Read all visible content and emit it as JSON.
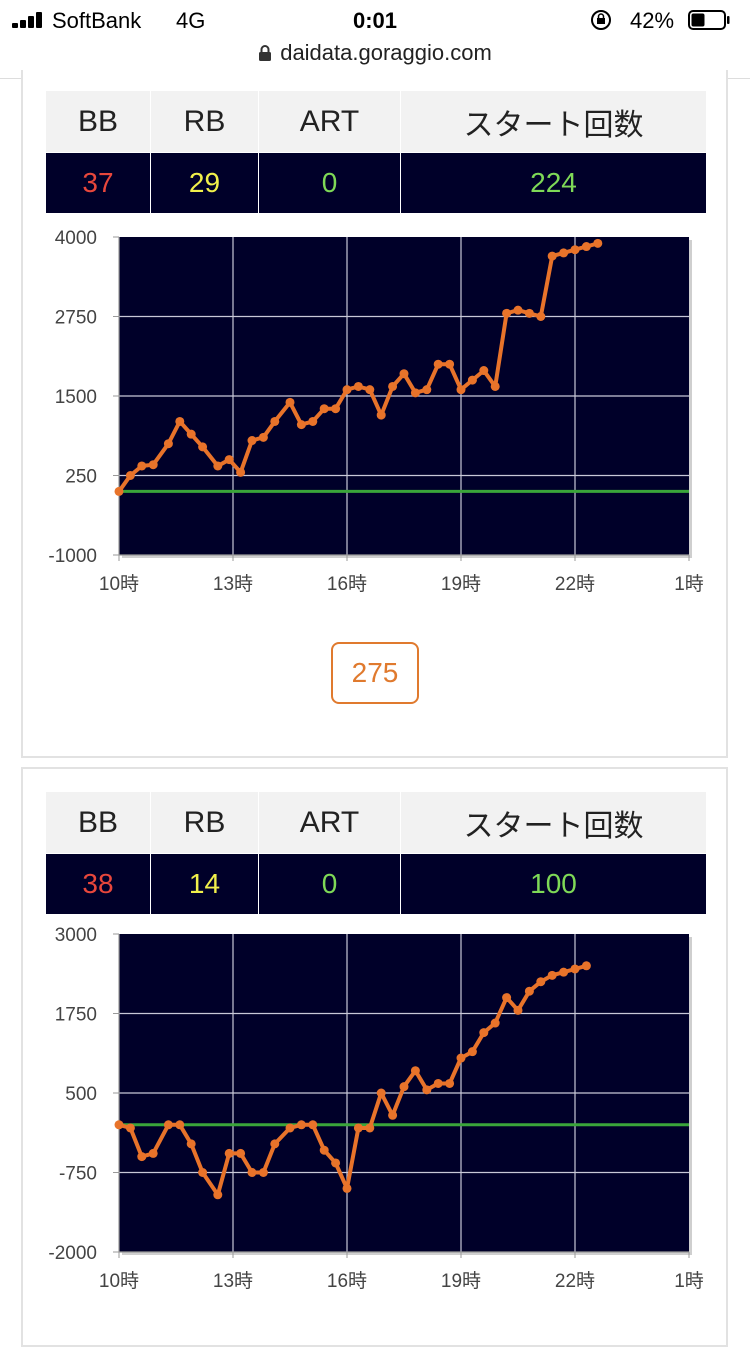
{
  "status": {
    "carrier": "SoftBank",
    "network": "4G",
    "time": "0:01",
    "battery_pct": "42%",
    "battery_level": 0.42
  },
  "browser": {
    "url": "daidata.goraggio.com"
  },
  "machines": [
    {
      "stats": {
        "headers": [
          "BB",
          "RB",
          "ART",
          "スタート回数"
        ],
        "values": [
          "37",
          "29",
          "0",
          "224"
        ]
      },
      "counter_label": "275",
      "chart_data": {
        "type": "line",
        "y_ticks": [
          "4000",
          "2750",
          "1500",
          "250",
          "-1000"
        ],
        "x_ticks": [
          "10時",
          "13時",
          "16時",
          "19時",
          "22時",
          "1時"
        ],
        "ylim": [
          -1000,
          4000
        ],
        "xlim": [
          10,
          25
        ],
        "baseline": 0,
        "grid": true,
        "colors": {
          "line": "#e8732a",
          "baseline": "#3aa53a",
          "background": "#000029"
        },
        "x": [
          10,
          10.3,
          10.6,
          10.9,
          11.3,
          11.6,
          11.9,
          12.2,
          12.6,
          12.9,
          13.2,
          13.5,
          13.8,
          14.1,
          14.5,
          14.8,
          15.1,
          15.4,
          15.7,
          16.0,
          16.3,
          16.6,
          16.9,
          17.2,
          17.5,
          17.8,
          18.1,
          18.4,
          18.7,
          19.0,
          19.3,
          19.6,
          19.9,
          20.2,
          20.5,
          20.8,
          21.1,
          21.4,
          21.7,
          22.0,
          22.3,
          22.6
        ],
        "y": [
          0,
          250,
          400,
          420,
          750,
          1100,
          900,
          700,
          400,
          500,
          300,
          800,
          850,
          1100,
          1400,
          1050,
          1100,
          1300,
          1300,
          1600,
          1650,
          1600,
          1200,
          1650,
          1850,
          1550,
          1600,
          2000,
          2000,
          1600,
          1750,
          1900,
          1650,
          2800,
          2850,
          2800,
          2750,
          3700,
          3750,
          3800,
          3850,
          3900
        ]
      }
    },
    {
      "stats": {
        "headers": [
          "BB",
          "RB",
          "ART",
          "スタート回数"
        ],
        "values": [
          "38",
          "14",
          "0",
          "100"
        ]
      },
      "chart_data": {
        "type": "line",
        "y_ticks": [
          "3000",
          "1750",
          "500",
          "-750",
          "-2000"
        ],
        "x_ticks": [
          "10時",
          "13時",
          "16時",
          "19時",
          "22時",
          "1時"
        ],
        "ylim": [
          -2000,
          3000
        ],
        "xlim": [
          10,
          25
        ],
        "baseline": 0,
        "grid": true,
        "colors": {
          "line": "#e8732a",
          "baseline": "#3aa53a",
          "background": "#000029"
        },
        "x": [
          10,
          10.3,
          10.6,
          10.9,
          11.3,
          11.6,
          11.9,
          12.2,
          12.6,
          12.9,
          13.2,
          13.5,
          13.8,
          14.1,
          14.5,
          14.8,
          15.1,
          15.4,
          15.7,
          16.0,
          16.3,
          16.6,
          16.9,
          17.2,
          17.5,
          17.8,
          18.1,
          18.4,
          18.7,
          19.0,
          19.3,
          19.6,
          19.9,
          20.2,
          20.5,
          20.8,
          21.1,
          21.4,
          21.7,
          22.0,
          22.3
        ],
        "y": [
          0,
          -50,
          -500,
          -450,
          0,
          0,
          -300,
          -750,
          -1100,
          -450,
          -450,
          -750,
          -750,
          -300,
          -50,
          0,
          0,
          -400,
          -600,
          -1000,
          -50,
          -50,
          500,
          150,
          600,
          850,
          550,
          650,
          650,
          1050,
          1150,
          1450,
          1600,
          2000,
          1800,
          2100,
          2250,
          2350,
          2400,
          2450,
          2500
        ]
      }
    }
  ]
}
